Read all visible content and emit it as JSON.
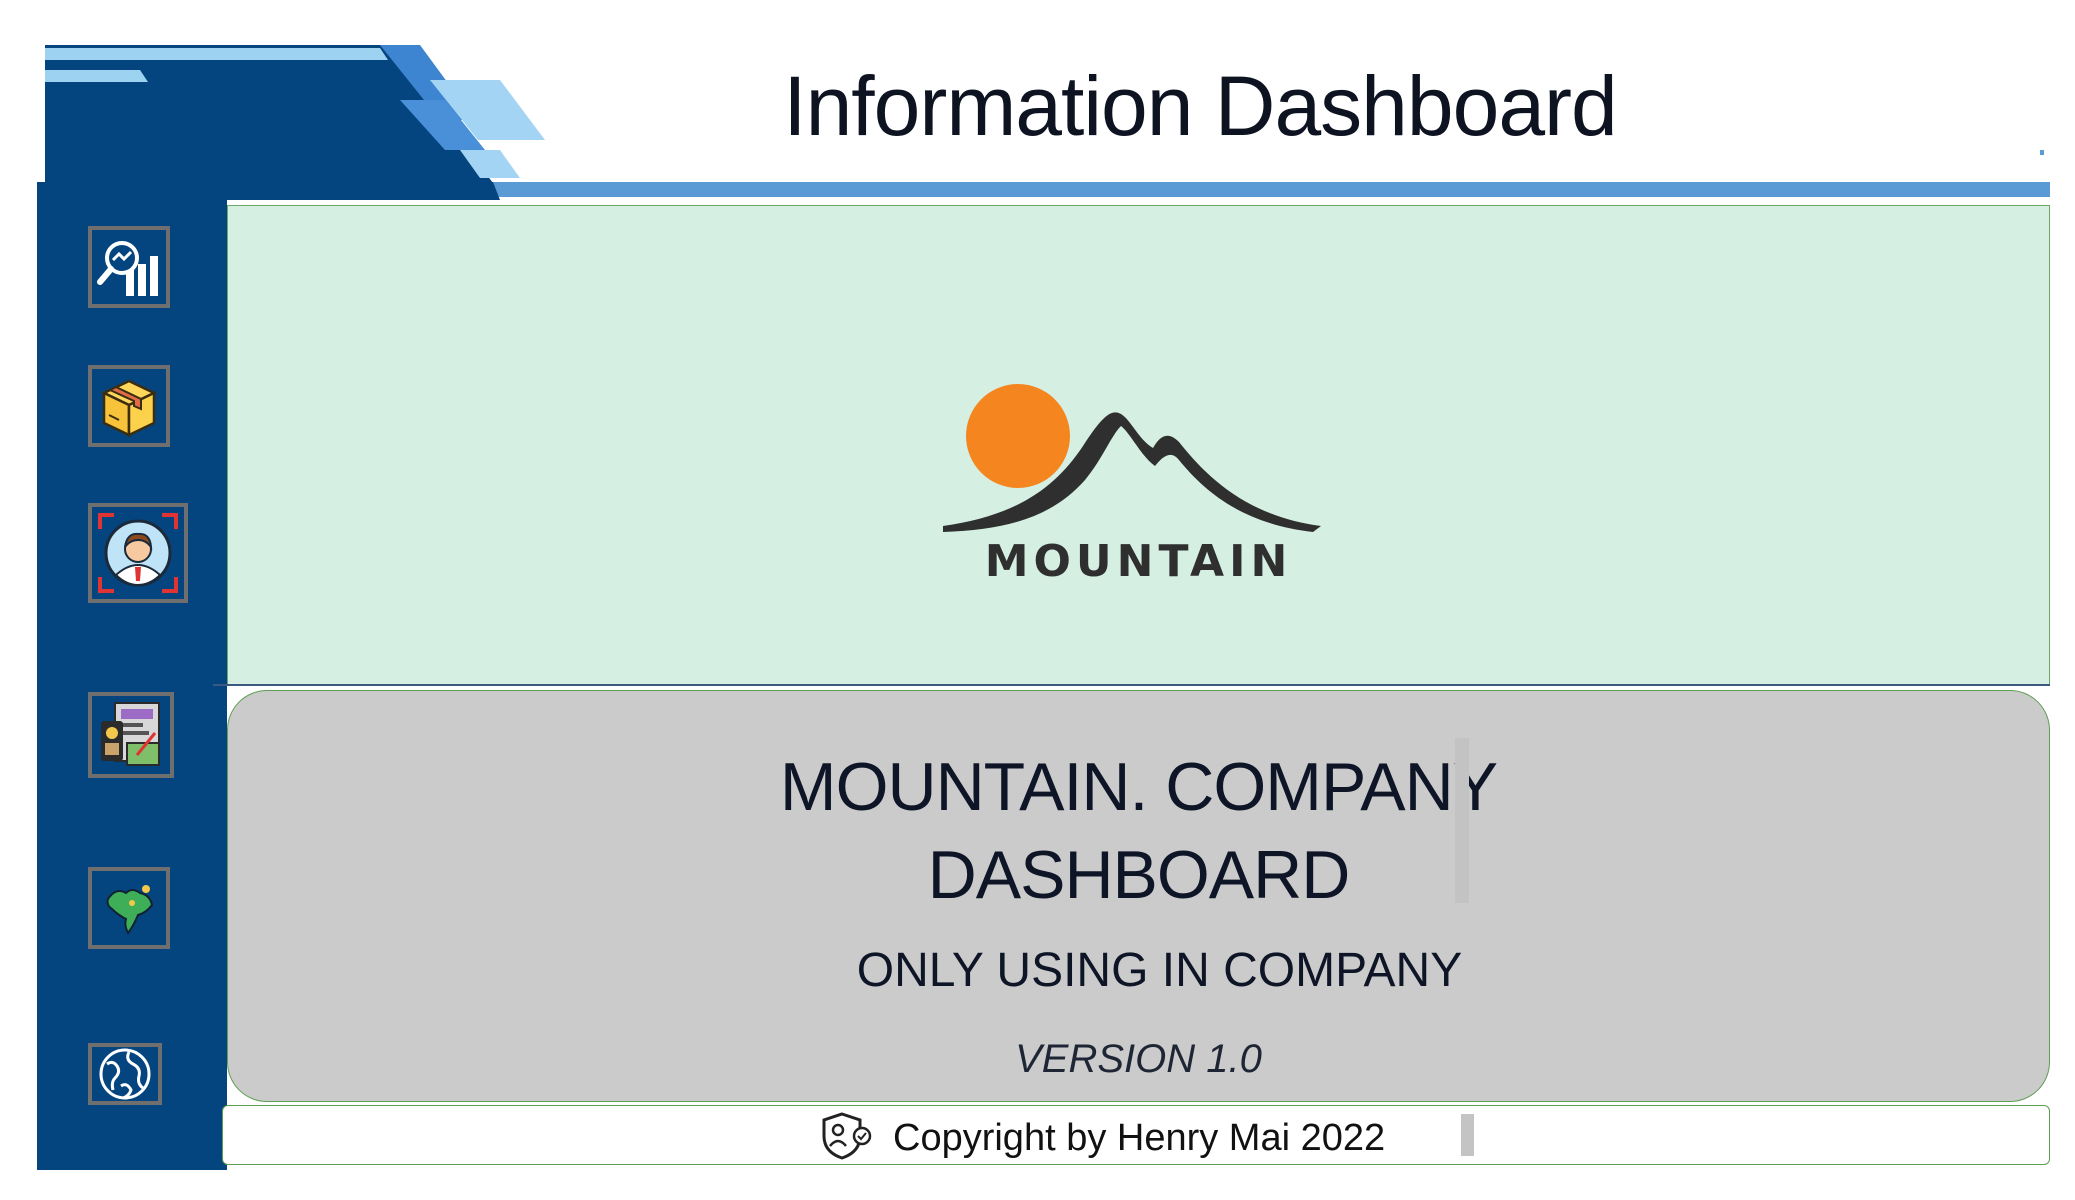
{
  "header": {
    "title": "Information Dashboard"
  },
  "sidebar": {
    "items": [
      {
        "icon": "analytics-magnifier-icon"
      },
      {
        "icon": "package-box-icon"
      },
      {
        "icon": "customer-target-icon"
      },
      {
        "icon": "finance-documents-icon"
      },
      {
        "icon": "country-map-icon"
      },
      {
        "icon": "globe-icon"
      }
    ]
  },
  "logo": {
    "text": "MOUNTAIN",
    "sun_color": "#f5861f",
    "mountain_color": "#2f2f2f"
  },
  "info": {
    "title_line1": "MOUNTAIN. COMPANY",
    "title_line2": "DASHBOARD",
    "subtitle": "ONLY USING IN COMPANY",
    "version": "VERSION 1.0"
  },
  "footer": {
    "copyright": "Copyright by Henry Mai 2022",
    "icon": "shield-user-icon"
  },
  "colors": {
    "sidebar": "#05457f",
    "logo_panel": "#d5efe3",
    "info_panel": "#cbcbcb",
    "header_accent": "#5b9bd5"
  }
}
